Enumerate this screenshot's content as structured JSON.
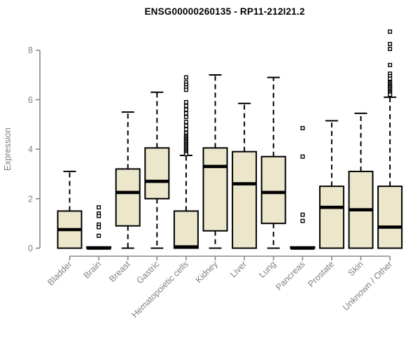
{
  "title": "ENSG00000260135 - RP11-212I21.2",
  "chart_data": {
    "type": "boxplot",
    "title": "ENSG00000260135 - RP11-212I21.2",
    "xlabel": "",
    "ylabel": "Expression",
    "ylim": [
      0,
      8.8
    ],
    "yticks": [
      0,
      2,
      4,
      6,
      8
    ],
    "grid": false,
    "legend": "none",
    "categories": [
      "Bladder",
      "Brain",
      "Breast",
      "Gastric",
      "Hematopoietic cells",
      "Kidney",
      "Liver",
      "Lung",
      "Pancreas",
      "Prostate",
      "Skin",
      "Unknown / Other"
    ],
    "series": [
      {
        "name": "Bladder",
        "low": 0,
        "q1": 0,
        "median": 0.75,
        "q3": 1.5,
        "high": 3.1,
        "outliers": []
      },
      {
        "name": "Brain",
        "low": 0,
        "q1": 0,
        "median": 0,
        "q3": 0.05,
        "high": 0.05,
        "outliers": [
          1.65,
          1.4,
          1.3,
          0.95,
          0.85,
          0.5
        ]
      },
      {
        "name": "Breast",
        "low": 0,
        "q1": 0.9,
        "median": 2.25,
        "q3": 3.2,
        "high": 5.5,
        "outliers": []
      },
      {
        "name": "Gastric",
        "low": 0,
        "q1": 2.0,
        "median": 2.7,
        "q3": 4.05,
        "high": 6.3,
        "outliers": []
      },
      {
        "name": "Hematopoietic cells",
        "low": 0,
        "q1": 0,
        "median": 0.05,
        "q3": 1.5,
        "high": 3.75,
        "outliers": [
          6.9,
          6.7,
          6.6,
          6.5,
          6.4,
          5.9,
          5.75,
          5.6,
          5.45,
          5.3,
          5.1,
          4.95,
          4.8,
          4.65,
          4.55,
          4.5,
          4.45,
          4.4,
          4.35,
          4.3,
          4.25,
          4.2,
          4.15,
          4.1,
          4.05,
          4.0,
          3.95,
          3.9,
          3.85,
          3.8
        ]
      },
      {
        "name": "Kidney",
        "low": 0,
        "q1": 0.7,
        "median": 3.3,
        "q3": 4.05,
        "high": 7.0,
        "outliers": []
      },
      {
        "name": "Liver",
        "low": 0,
        "q1": 0,
        "median": 2.6,
        "q3": 3.9,
        "high": 5.85,
        "outliers": []
      },
      {
        "name": "Lung",
        "low": 0,
        "q1": 1.0,
        "median": 2.25,
        "q3": 3.7,
        "high": 6.9,
        "outliers": []
      },
      {
        "name": "Pancreas",
        "low": 0,
        "q1": 0,
        "median": 0,
        "q3": 0.05,
        "high": 0.05,
        "outliers": [
          4.85,
          3.7,
          1.35,
          1.1
        ]
      },
      {
        "name": "Prostate",
        "low": 0,
        "q1": 0,
        "median": 1.65,
        "q3": 2.5,
        "high": 5.15,
        "outliers": []
      },
      {
        "name": "Skin",
        "low": 0,
        "q1": 0,
        "median": 1.55,
        "q3": 3.1,
        "high": 5.45,
        "outliers": []
      },
      {
        "name": "Unknown / Other",
        "low": 0,
        "q1": 0,
        "median": 0.85,
        "q3": 2.5,
        "high": 6.1,
        "outliers": [
          8.75,
          8.25,
          8.05,
          7.4,
          7.05,
          6.95,
          6.85,
          6.7,
          6.65,
          6.6,
          6.55,
          6.5,
          6.45,
          6.4,
          6.35,
          6.3,
          6.25,
          6.2
        ]
      }
    ],
    "colors": {
      "box_fill": "#ece6cb",
      "box_stroke": "#000000",
      "median": "#000000",
      "whisker": "#000000",
      "outlier_stroke": "#000000",
      "outlier_fill": "#ffffff",
      "axis": "#878787",
      "tick_label": "#808080",
      "title": "#000000",
      "background": "#ffffff"
    }
  }
}
